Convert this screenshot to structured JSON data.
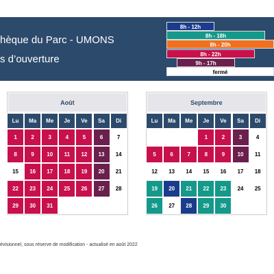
{
  "header": {
    "title": "hèque du Parc - UMONS",
    "subtitle": "s d’ouverture"
  },
  "legend": {
    "items": [
      {
        "label": "8h - 12h",
        "color": "#1b3c8c"
      },
      {
        "label": "8h - 18h",
        "color": "#14998a"
      },
      {
        "label": "8h - 20h",
        "color": "#f07020"
      },
      {
        "label": "8h - 22h",
        "color": "#c8104c"
      },
      {
        "label": "9h - 17h",
        "color": "#6b1f4c"
      },
      {
        "label": "fermé",
        "color": "#ffffff"
      }
    ]
  },
  "calendars": [
    {
      "month": "Août",
      "weekdays": [
        "Lu",
        "Ma",
        "Me",
        "Je",
        "Ve",
        "Sa",
        "Di"
      ],
      "weeks": [
        [
          {
            "day": 1,
            "color": "#c8104c"
          },
          {
            "day": 2,
            "color": "#c8104c"
          },
          {
            "day": 3,
            "color": "#c8104c"
          },
          {
            "day": 4,
            "color": "#c8104c"
          },
          {
            "day": 5,
            "color": "#c8104c"
          },
          {
            "day": 6,
            "color": "#6b1f4c"
          },
          {
            "day": 7,
            "color": "#ffffff"
          }
        ],
        [
          {
            "day": 8,
            "color": "#c8104c"
          },
          {
            "day": 9,
            "color": "#c8104c"
          },
          {
            "day": 10,
            "color": "#c8104c"
          },
          {
            "day": 11,
            "color": "#c8104c"
          },
          {
            "day": 12,
            "color": "#c8104c"
          },
          {
            "day": 13,
            "color": "#6b1f4c"
          },
          {
            "day": 14,
            "color": "#ffffff"
          }
        ],
        [
          {
            "day": 15,
            "color": "#ffffff"
          },
          {
            "day": 16,
            "color": "#c8104c"
          },
          {
            "day": 17,
            "color": "#c8104c"
          },
          {
            "day": 18,
            "color": "#c8104c"
          },
          {
            "day": 19,
            "color": "#c8104c"
          },
          {
            "day": 20,
            "color": "#6b1f4c"
          },
          {
            "day": 21,
            "color": "#ffffff"
          }
        ],
        [
          {
            "day": 22,
            "color": "#c8104c"
          },
          {
            "day": 23,
            "color": "#c8104c"
          },
          {
            "day": 24,
            "color": "#c8104c"
          },
          {
            "day": 25,
            "color": "#c8104c"
          },
          {
            "day": 26,
            "color": "#c8104c"
          },
          {
            "day": 27,
            "color": "#6b1f4c"
          },
          {
            "day": 28,
            "color": "#ffffff"
          }
        ],
        [
          {
            "day": 29,
            "color": "#c8104c"
          },
          {
            "day": 30,
            "color": "#c8104c"
          },
          {
            "day": 31,
            "color": "#c8104c"
          },
          null,
          null,
          null,
          null
        ]
      ]
    },
    {
      "month": "Septembre",
      "weekdays": [
        "Lu",
        "Ma",
        "Me",
        "Je",
        "Ve",
        "Sa",
        "Di"
      ],
      "weeks": [
        [
          null,
          null,
          null,
          {
            "day": 1,
            "color": "#c8104c"
          },
          {
            "day": 2,
            "color": "#c8104c"
          },
          {
            "day": 3,
            "color": "#6b1f4c"
          },
          {
            "day": 4,
            "color": "#ffffff"
          }
        ],
        [
          {
            "day": 5,
            "color": "#c8104c"
          },
          {
            "day": 6,
            "color": "#c8104c"
          },
          {
            "day": 7,
            "color": "#c8104c"
          },
          {
            "day": 8,
            "color": "#c8104c"
          },
          {
            "day": 9,
            "color": "#c8104c"
          },
          {
            "day": 10,
            "color": "#6b1f4c"
          },
          {
            "day": 11,
            "color": "#ffffff"
          }
        ],
        [
          {
            "day": 12,
            "color": "#ffffff"
          },
          {
            "day": 13,
            "color": "#ffffff"
          },
          {
            "day": 14,
            "color": "#ffffff"
          },
          {
            "day": 15,
            "color": "#ffffff"
          },
          {
            "day": 16,
            "color": "#ffffff"
          },
          {
            "day": 17,
            "color": "#ffffff"
          },
          {
            "day": 18,
            "color": "#ffffff"
          }
        ],
        [
          {
            "day": 19,
            "color": "#14998a"
          },
          {
            "day": 20,
            "color": "#1b3c8c"
          },
          {
            "day": 21,
            "color": "#14998a"
          },
          {
            "day": 22,
            "color": "#14998a"
          },
          {
            "day": 23,
            "color": "#14998a"
          },
          {
            "day": 24,
            "color": "#ffffff"
          },
          {
            "day": 25,
            "color": "#ffffff"
          }
        ],
        [
          {
            "day": 26,
            "color": "#14998a"
          },
          {
            "day": 27,
            "color": "#ffffff"
          },
          {
            "day": 28,
            "color": "#1b3c8c"
          },
          {
            "day": 29,
            "color": "#14998a"
          },
          {
            "day": 30,
            "color": "#14998a"
          },
          null,
          null
        ]
      ]
    }
  ],
  "footer": "évisionnel, sous réserve de modification - actualisé en août 2022"
}
